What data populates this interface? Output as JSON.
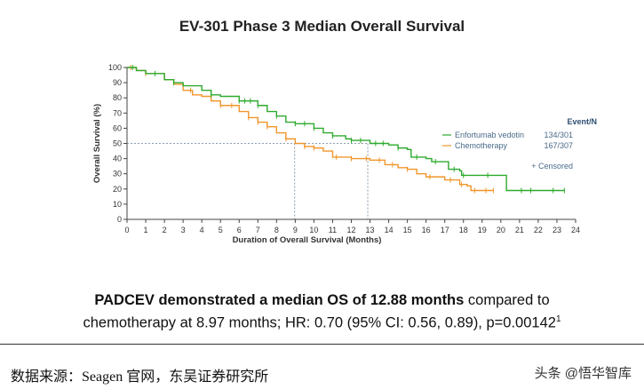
{
  "chart_data": {
    "type": "line",
    "title": "EV-301 Phase 3 Median Overall Survival",
    "xlabel": "Duration of Overall Survival (Months)",
    "ylabel": "Overall Survival (%)",
    "xlim": [
      0,
      24
    ],
    "ylim": [
      0,
      100
    ],
    "xticks": [
      0,
      1,
      2,
      3,
      4,
      5,
      6,
      7,
      8,
      9,
      10,
      11,
      12,
      13,
      14,
      15,
      16,
      17,
      18,
      19,
      20,
      21,
      22,
      23,
      24
    ],
    "yticks": [
      0,
      10,
      20,
      30,
      40,
      50,
      60,
      70,
      80,
      90,
      100
    ],
    "grid": false,
    "step": true,
    "legend_placement": "right",
    "legend_header": "Event/N",
    "censored_label": "+ Censored",
    "median_line_y": 50,
    "medians_x": [
      8.97,
      12.88
    ],
    "series": [
      {
        "name": "Enfortumab vedotin",
        "event_n": "134/301",
        "color": "#2eaa2e",
        "x": [
          0,
          0.5,
          1,
          2,
          2.5,
          3,
          4,
          4.5,
          5,
          6,
          7,
          7.5,
          8,
          8.5,
          9,
          10,
          10.5,
          11,
          11.7,
          12,
          13,
          14,
          14.5,
          15,
          15.2,
          16,
          16.3,
          17,
          17.2,
          17.8,
          17.9,
          20.3,
          20.3,
          23.4
        ],
        "y": [
          100,
          98,
          96,
          92,
          90,
          88,
          85,
          82,
          81,
          78,
          75,
          71,
          68,
          64,
          63,
          60,
          57,
          55,
          53,
          52,
          50,
          49,
          47,
          46,
          41,
          40,
          38,
          38,
          33,
          32,
          29,
          29,
          19,
          19
        ],
        "censored_x": [
          0.3,
          1.5,
          2.5,
          4.5,
          6,
          6.3,
          6.6,
          7,
          8,
          9,
          9.5,
          10,
          11,
          12,
          12.5,
          13.3,
          13.7,
          14.5,
          15.5,
          16.5,
          17.5,
          18,
          19.3,
          21.1,
          21.6,
          22.8,
          23.4
        ]
      },
      {
        "name": "Chemotherapy",
        "event_n": "167/307",
        "color": "#f0962a",
        "x": [
          0,
          0.5,
          1,
          2,
          2.5,
          3,
          3.5,
          4,
          4.5,
          5,
          6,
          6.5,
          7,
          7.5,
          8,
          8.5,
          9,
          9.5,
          10,
          10.5,
          11,
          12,
          13,
          13.7,
          13.8,
          14.5,
          15,
          15.5,
          16,
          16.5,
          17,
          17.5,
          17.8,
          18.2,
          18.4,
          19.6
        ],
        "y": [
          100,
          98,
          96,
          92,
          89,
          85,
          82,
          81,
          78,
          75,
          71,
          67,
          64,
          61,
          57,
          53,
          50,
          48,
          47,
          45,
          41,
          40,
          39,
          39,
          36,
          34,
          33,
          30,
          28,
          28,
          26,
          26,
          23,
          22,
          19,
          19
        ],
        "censored_x": [
          0.2,
          1,
          3.4,
          5,
          5.6,
          6.5,
          7,
          7.5,
          8.5,
          9.5,
          10,
          11.2,
          12,
          12.8,
          13.5,
          14.2,
          15,
          16.2,
          17.3,
          17.9,
          18.6,
          19.2,
          19.6
        ]
      }
    ]
  },
  "caption": {
    "bold": "PADCEV demonstrated a median OS of 12.88 months",
    "rest1": " compared to",
    "line2": "chemotherapy at 8.97 months; HR: 0.70 (95% CI: 0.56, 0.89), p=0.00142",
    "sup": "1"
  },
  "source": "数据来源：Seagen 官网，东吴证券研究所",
  "watermark": "头条 @悟华智库"
}
